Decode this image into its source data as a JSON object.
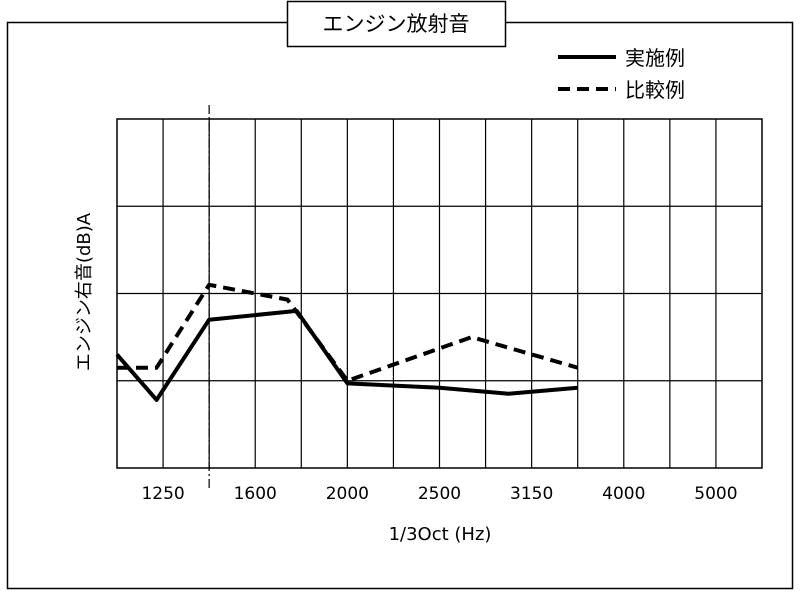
{
  "chart_data": {
    "type": "line",
    "title": "エンジン放射音",
    "xlabel": "1/3Oct (Hz)",
    "ylabel": "エンジン右音(dB)A",
    "categories": [
      "1250",
      "1600",
      "2000",
      "2500",
      "3150",
      "4000",
      "5000"
    ],
    "x_axis_range": [
      0.5,
      7.5
    ],
    "y_axis_range": [
      0,
      4
    ],
    "grid": true,
    "legend_position": "top-right",
    "marker_line_at": 1.5,
    "series": [
      {
        "name": "実施例",
        "style": "solid",
        "color": "#000000",
        "points": [
          [
            0.5,
            1.3
          ],
          [
            0.93,
            0.78
          ],
          [
            1.5,
            1.7
          ],
          [
            2.45,
            1.8
          ],
          [
            3.0,
            0.97
          ],
          [
            4.0,
            0.92
          ],
          [
            4.75,
            0.85
          ],
          [
            5.5,
            0.92
          ]
        ]
      },
      {
        "name": "比較例",
        "style": "dashed",
        "color": "#000000",
        "points": [
          [
            0.5,
            1.15
          ],
          [
            0.93,
            1.15
          ],
          [
            1.5,
            2.1
          ],
          [
            2.35,
            1.93
          ],
          [
            3.0,
            1.0
          ],
          [
            4.35,
            1.5
          ],
          [
            5.5,
            1.15
          ]
        ]
      }
    ]
  }
}
